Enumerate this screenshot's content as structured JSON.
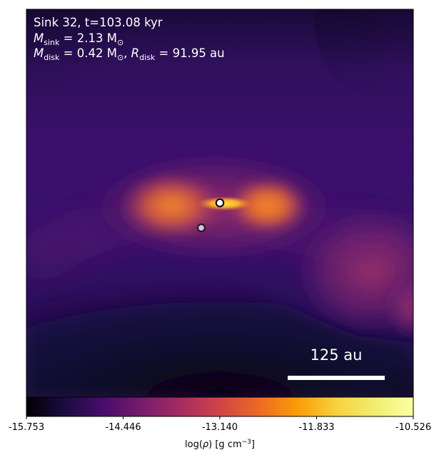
{
  "chart_data": {
    "type": "heatmap",
    "title_lines": [
      "Sink 32, t=103.08 kyr",
      "M_sink = 2.13 M⊙",
      "M_disk = 0.42 M⊙, R_disk = 91.95 au"
    ],
    "title_parts": {
      "line1": "Sink 32, t=103.08 kyr",
      "m_sink_symbol": "M",
      "m_sink_sub": "sink",
      "m_sink_value": " = 2.13 M",
      "sun_sub": "⊙",
      "m_disk_symbol": "M",
      "m_disk_sub": "disk",
      "m_disk_value": " = 0.42 M",
      "r_disk_sep": ", ",
      "r_disk_symbol": "R",
      "r_disk_sub": "disk",
      "r_disk_value": " = 91.95 au"
    },
    "scale_bar": {
      "label": "125 au",
      "length_au": 125
    },
    "sinks": [
      {
        "name": "primary sink",
        "color": "#ffffff"
      },
      {
        "name": "secondary sink",
        "color": "#d9c7d3"
      }
    ],
    "colorbar": {
      "colormap": "inferno",
      "min": -15.753,
      "max": -10.526,
      "ticks": [
        "-15.753",
        "-14.446",
        "-13.140",
        "-11.833",
        "-10.526"
      ],
      "label": "log(ρ) [g cm⁻³]",
      "label_parts": {
        "before": "log(",
        "rho": "ρ",
        "after": ") [g cm",
        "sup": "−3",
        "end": "]"
      }
    },
    "colors": {
      "bg_dark": "#0c0823",
      "purple": "#3c0f6a",
      "magenta": "#8a2a6a",
      "orange": "#f07a1f",
      "yellow": "#fbd43a"
    }
  }
}
